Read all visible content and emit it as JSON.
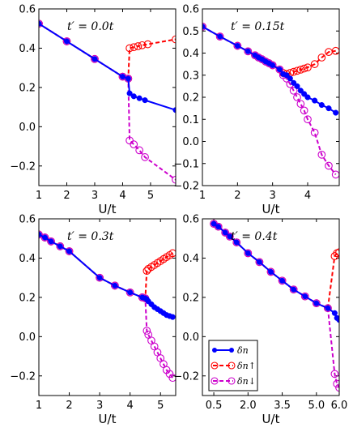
{
  "chart_data": [
    {
      "type": "line",
      "title": "t′ = 0.0t",
      "xlabel": "U/t",
      "xlim": [
        1.0,
        5.9
      ],
      "ylim": [
        -0.3,
        0.6
      ],
      "xticks": [
        1,
        2,
        3,
        4,
        5
      ],
      "xtick_labels": [
        "1",
        "2",
        "3",
        "4",
        "5"
      ],
      "yticks": [
        -0.2,
        0.0,
        0.2,
        0.4,
        0.6
      ],
      "ytick_labels": [
        "−0.2",
        "0.0",
        "0.2",
        "0.4",
        "0.6"
      ],
      "series": [
        {
          "name": "δn",
          "color": "#0000ff",
          "style": "solid-filled",
          "x": [
            1.0,
            2.0,
            3.0,
            4.0,
            4.2,
            4.25,
            4.4,
            4.6,
            4.8,
            5.9
          ],
          "y": [
            0.525,
            0.435,
            0.345,
            0.255,
            0.245,
            0.17,
            0.155,
            0.145,
            0.135,
            0.085
          ]
        },
        {
          "name": "δn↑",
          "color": "#ff0000",
          "style": "dashed-open",
          "x": [
            1.0,
            2.0,
            3.0,
            4.0,
            4.2,
            4.25,
            4.4,
            4.55,
            4.7,
            4.9,
            5.9
          ],
          "y": [
            0.525,
            0.435,
            0.345,
            0.255,
            0.245,
            0.4,
            0.405,
            0.41,
            0.415,
            0.42,
            0.445
          ]
        },
        {
          "name": "δn↓",
          "color": "#cc00cc",
          "style": "dashed-open",
          "x": [
            1.0,
            2.0,
            3.0,
            4.0,
            4.2,
            4.25,
            4.4,
            4.6,
            4.8,
            5.9
          ],
          "y": [
            0.525,
            0.435,
            0.345,
            0.255,
            0.245,
            -0.07,
            -0.09,
            -0.12,
            -0.155,
            -0.27
          ]
        }
      ]
    },
    {
      "type": "line",
      "title": "t′ = 0.15t",
      "xlabel": "U/t",
      "xlim": [
        1.0,
        4.9
      ],
      "ylim": [
        -0.2,
        0.6
      ],
      "xticks": [
        1,
        2,
        3,
        4
      ],
      "xtick_labels": [
        "1",
        "2",
        "3",
        "4"
      ],
      "yticks": [
        -0.2,
        -0.1,
        0.0,
        0.1,
        0.2,
        0.3,
        0.4,
        0.5,
        0.6
      ],
      "ytick_labels": [
        "−0.2",
        "−0.1",
        "0.0",
        "0.1",
        "0.2",
        "0.3",
        "0.4",
        "0.5",
        "0.6"
      ],
      "series": [
        {
          "name": "δn",
          "color": "#0000ff",
          "style": "solid-filled",
          "x": [
            1.0,
            1.5,
            2.0,
            2.3,
            2.5,
            2.6,
            2.7,
            2.8,
            2.9,
            3.0,
            3.2,
            3.3,
            3.4,
            3.5,
            3.6,
            3.7,
            3.8,
            3.9,
            4.0,
            4.2,
            4.4,
            4.6,
            4.8
          ],
          "y": [
            0.52,
            0.475,
            0.433,
            0.408,
            0.39,
            0.38,
            0.372,
            0.362,
            0.354,
            0.345,
            0.326,
            0.305,
            0.3,
            0.285,
            0.265,
            0.25,
            0.23,
            0.215,
            0.2,
            0.185,
            0.165,
            0.15,
            0.13
          ]
        },
        {
          "name": "δn↑",
          "color": "#ff0000",
          "style": "dashed-open",
          "x": [
            1.0,
            1.5,
            2.0,
            2.3,
            2.5,
            2.6,
            2.7,
            2.8,
            2.9,
            3.0,
            3.2,
            3.3,
            3.4,
            3.5,
            3.6,
            3.7,
            3.8,
            3.9,
            4.0,
            4.2,
            4.4,
            4.6,
            4.8
          ],
          "y": [
            0.52,
            0.475,
            0.433,
            0.408,
            0.39,
            0.38,
            0.372,
            0.362,
            0.354,
            0.345,
            0.326,
            0.31,
            0.305,
            0.31,
            0.315,
            0.32,
            0.325,
            0.33,
            0.335,
            0.35,
            0.38,
            0.405,
            0.41
          ]
        },
        {
          "name": "δn↓",
          "color": "#cc00cc",
          "style": "dashed-open",
          "x": [
            1.0,
            1.5,
            2.0,
            2.3,
            2.5,
            2.6,
            2.7,
            2.8,
            2.9,
            3.0,
            3.2,
            3.3,
            3.4,
            3.5,
            3.6,
            3.7,
            3.8,
            3.9,
            4.0,
            4.2,
            4.4,
            4.6,
            4.8
          ],
          "y": [
            0.52,
            0.475,
            0.433,
            0.408,
            0.39,
            0.38,
            0.372,
            0.362,
            0.354,
            0.345,
            0.326,
            0.3,
            0.285,
            0.26,
            0.23,
            0.2,
            0.17,
            0.14,
            0.1,
            0.04,
            -0.06,
            -0.11,
            -0.15
          ]
        }
      ]
    },
    {
      "type": "line",
      "title": "t′ = 0.3t",
      "xlabel": "U/t",
      "xlim": [
        1.0,
        5.5
      ],
      "ylim": [
        -0.3,
        0.6
      ],
      "xticks": [
        1,
        2,
        3,
        4,
        5
      ],
      "xtick_labels": [
        "1",
        "2",
        "3",
        "4",
        "5"
      ],
      "yticks": [
        -0.2,
        0.0,
        0.2,
        0.4,
        0.6
      ],
      "ytick_labels": [
        "−0.2",
        "0.0",
        "0.2",
        "0.4",
        "0.6"
      ],
      "series": [
        {
          "name": "δn",
          "color": "#0000ff",
          "style": "solid-filled",
          "x": [
            1.0,
            1.2,
            1.4,
            1.7,
            2.0,
            3.0,
            3.5,
            4.0,
            4.4,
            4.5,
            4.55,
            4.6,
            4.7,
            4.8,
            4.9,
            5.0,
            5.1,
            5.2,
            5.3,
            5.4
          ],
          "y": [
            0.52,
            0.505,
            0.485,
            0.46,
            0.435,
            0.3,
            0.26,
            0.225,
            0.2,
            0.195,
            0.19,
            0.18,
            0.165,
            0.15,
            0.14,
            0.13,
            0.12,
            0.11,
            0.105,
            0.1
          ]
        },
        {
          "name": "δn↑",
          "color": "#ff0000",
          "style": "dashed-open",
          "x": [
            1.0,
            1.2,
            1.4,
            1.7,
            2.0,
            3.0,
            3.5,
            4.0,
            4.4,
            4.5,
            4.55,
            4.6,
            4.7,
            4.8,
            4.9,
            5.0,
            5.1,
            5.2,
            5.3,
            5.4
          ],
          "y": [
            0.52,
            0.505,
            0.485,
            0.46,
            0.435,
            0.3,
            0.26,
            0.225,
            0.2,
            0.195,
            0.335,
            0.345,
            0.355,
            0.365,
            0.375,
            0.385,
            0.395,
            0.405,
            0.415,
            0.425
          ]
        },
        {
          "name": "δn↓",
          "color": "#cc00cc",
          "style": "dashed-open",
          "x": [
            1.0,
            1.2,
            1.4,
            1.7,
            2.0,
            3.0,
            3.5,
            4.0,
            4.4,
            4.5,
            4.55,
            4.6,
            4.7,
            4.8,
            4.9,
            5.0,
            5.1,
            5.2,
            5.3,
            5.4
          ],
          "y": [
            0.52,
            0.505,
            0.485,
            0.46,
            0.435,
            0.3,
            0.26,
            0.225,
            0.2,
            0.195,
            0.03,
            0.01,
            -0.02,
            -0.05,
            -0.08,
            -0.11,
            -0.14,
            -0.17,
            -0.19,
            -0.21
          ]
        }
      ]
    },
    {
      "type": "line",
      "title": "t′ = 0.4t",
      "xlabel": "U/t",
      "xlim": [
        0.0,
        6.0
      ],
      "ylim": [
        -0.3,
        0.6
      ],
      "xticks": [
        0.5,
        2.0,
        3.5,
        5.0,
        6.0
      ],
      "xtick_labels": [
        "0.5",
        "2.0",
        "3.5",
        "5.0",
        "6.0"
      ],
      "yticks": [
        -0.2,
        0.0,
        0.2,
        0.4,
        0.6
      ],
      "ytick_labels": [
        "−0.2",
        "0.0",
        "0.2",
        "0.4",
        "0.6"
      ],
      "legend_position": "lower-left",
      "series": [
        {
          "name": "δn",
          "color": "#0000ff",
          "style": "solid-filled",
          "x": [
            0.5,
            0.7,
            1.0,
            1.2,
            1.5,
            2.0,
            2.5,
            3.0,
            3.5,
            4.0,
            4.5,
            5.0,
            5.5,
            5.8,
            5.9,
            6.0
          ],
          "y": [
            0.575,
            0.56,
            0.53,
            0.51,
            0.48,
            0.425,
            0.38,
            0.33,
            0.285,
            0.24,
            0.205,
            0.17,
            0.145,
            0.12,
            0.095,
            0.085
          ]
        },
        {
          "name": "δn↑",
          "color": "#ff0000",
          "style": "dashed-open",
          "x": [
            0.5,
            0.7,
            1.0,
            1.2,
            1.5,
            2.0,
            2.5,
            3.0,
            3.5,
            4.0,
            4.5,
            5.0,
            5.5,
            5.8,
            5.9,
            6.0
          ],
          "y": [
            0.575,
            0.56,
            0.53,
            0.51,
            0.48,
            0.425,
            0.38,
            0.33,
            0.285,
            0.24,
            0.205,
            0.17,
            0.145,
            0.41,
            0.425,
            0.43
          ]
        },
        {
          "name": "δn↓",
          "color": "#cc00cc",
          "style": "dashed-open",
          "x": [
            0.5,
            0.7,
            1.0,
            1.2,
            1.5,
            2.0,
            2.5,
            3.0,
            3.5,
            4.0,
            4.5,
            5.0,
            5.5,
            5.8,
            5.9,
            6.0
          ],
          "y": [
            0.575,
            0.56,
            0.53,
            0.51,
            0.48,
            0.425,
            0.38,
            0.33,
            0.285,
            0.24,
            0.205,
            0.17,
            0.145,
            -0.19,
            -0.24,
            -0.26
          ]
        }
      ]
    }
  ]
}
